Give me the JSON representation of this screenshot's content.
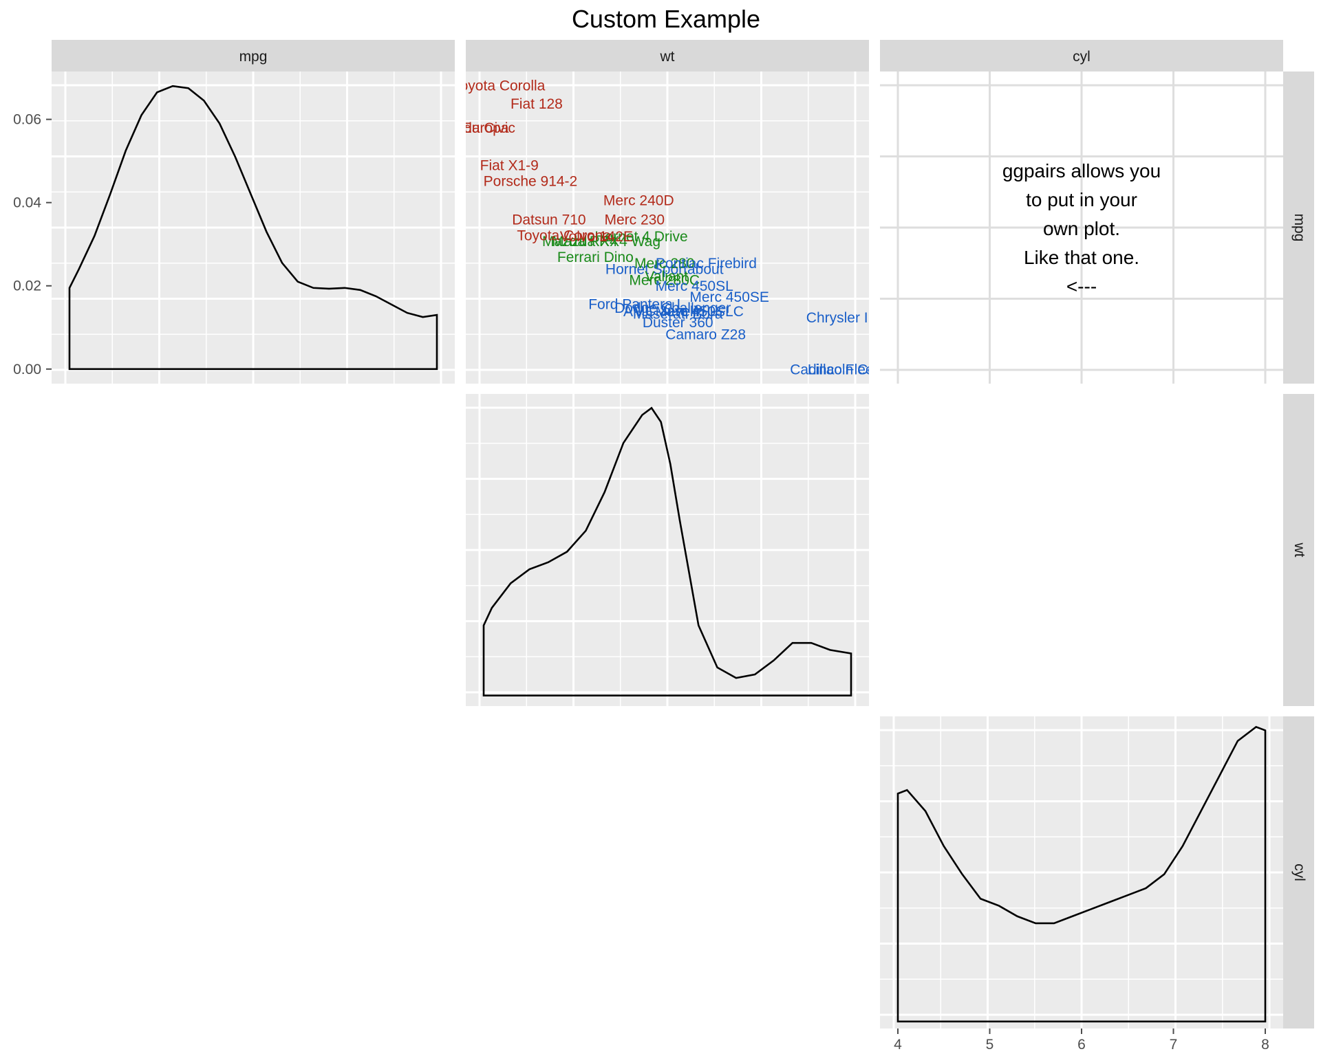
{
  "chart_data": {
    "type": "scatterplot-matrix",
    "title": "Custom Example",
    "variables": [
      "mpg",
      "wt",
      "cyl"
    ],
    "colors": {
      "panel_bg": "#ebebeb",
      "strip_bg": "#d9d9d9",
      "grid": "#ffffff",
      "cyl4": "#b22a1a",
      "cyl6": "#1a8a1a",
      "cyl8": "#1a5fc8"
    },
    "panels": {
      "mpg_density": {
        "type": "density",
        "variable": "mpg",
        "xlim": [
          10.4,
          33.9
        ],
        "ylim": [
          -0.0035,
          0.0715
        ],
        "y_ticks": [
          0.0,
          0.02,
          0.04,
          0.06
        ],
        "y_tick_labels": [
          "0.00",
          "0.02",
          "0.04",
          "0.06"
        ],
        "x": [
          10.4,
          11,
          12,
          13,
          14,
          15,
          16,
          17,
          18,
          19,
          20,
          21,
          22,
          23,
          24,
          25,
          26,
          27,
          28,
          29,
          30,
          31,
          32,
          33,
          33.9
        ],
        "y": [
          0.0195,
          0.024,
          0.032,
          0.042,
          0.0525,
          0.061,
          0.0665,
          0.068,
          0.0675,
          0.0645,
          0.059,
          0.051,
          0.042,
          0.033,
          0.0255,
          0.021,
          0.0195,
          0.0193,
          0.0195,
          0.019,
          0.0175,
          0.0155,
          0.0135,
          0.0125,
          0.013
        ]
      },
      "mpg_wt_labels": {
        "type": "text-scatter",
        "xlim": [
          1.513,
          5.424
        ],
        "ylim": [
          9.225,
          35.075
        ],
        "points": [
          {
            "name": "Mazda RX4",
            "wt": 2.62,
            "mpg": 21.0,
            "cyl": 6
          },
          {
            "name": "Mazda RX4 Wag",
            "wt": 2.875,
            "mpg": 21.0,
            "cyl": 6
          },
          {
            "name": "Datsun 710",
            "wt": 2.32,
            "mpg": 22.8,
            "cyl": 4
          },
          {
            "name": "Hornet 4 Drive",
            "wt": 3.215,
            "mpg": 21.4,
            "cyl": 6
          },
          {
            "name": "Hornet Sportabout",
            "wt": 3.44,
            "mpg": 18.7,
            "cyl": 8
          },
          {
            "name": "Valiant",
            "wt": 3.46,
            "mpg": 18.1,
            "cyl": 6
          },
          {
            "name": "Duster 360",
            "wt": 3.57,
            "mpg": 14.3,
            "cyl": 8
          },
          {
            "name": "Merc 240D",
            "wt": 3.19,
            "mpg": 24.4,
            "cyl": 4
          },
          {
            "name": "Merc 230",
            "wt": 3.15,
            "mpg": 22.8,
            "cyl": 4
          },
          {
            "name": "Merc 280",
            "wt": 3.44,
            "mpg": 19.2,
            "cyl": 6
          },
          {
            "name": "Merc 280C",
            "wt": 3.44,
            "mpg": 17.8,
            "cyl": 6
          },
          {
            "name": "Merc 450SE",
            "wt": 4.07,
            "mpg": 16.4,
            "cyl": 8
          },
          {
            "name": "Merc 450SL",
            "wt": 3.73,
            "mpg": 17.3,
            "cyl": 8
          },
          {
            "name": "Merc 450SLC",
            "wt": 3.78,
            "mpg": 15.2,
            "cyl": 8
          },
          {
            "name": "Cadillac Fleetwood",
            "wt": 5.25,
            "mpg": 10.4,
            "cyl": 8
          },
          {
            "name": "Lincoln Continental",
            "wt": 5.424,
            "mpg": 10.4,
            "cyl": 8
          },
          {
            "name": "Chrysler Imperial",
            "wt": 5.345,
            "mpg": 14.7,
            "cyl": 8
          },
          {
            "name": "Fiat 128",
            "wt": 2.2,
            "mpg": 32.4,
            "cyl": 4
          },
          {
            "name": "Honda Civic",
            "wt": 1.615,
            "mpg": 30.4,
            "cyl": 4
          },
          {
            "name": "Toyota Corolla",
            "wt": 1.835,
            "mpg": 33.9,
            "cyl": 4
          },
          {
            "name": "Toyota Corona",
            "wt": 2.465,
            "mpg": 21.5,
            "cyl": 4
          },
          {
            "name": "Dodge Challenger",
            "wt": 3.52,
            "mpg": 15.5,
            "cyl": 8
          },
          {
            "name": "AMC Javelin",
            "wt": 3.435,
            "mpg": 15.2,
            "cyl": 8
          },
          {
            "name": "Camaro Z28",
            "wt": 3.84,
            "mpg": 13.3,
            "cyl": 8
          },
          {
            "name": "Pontiac Firebird",
            "wt": 3.845,
            "mpg": 19.2,
            "cyl": 8
          },
          {
            "name": "Fiat X1-9",
            "wt": 1.935,
            "mpg": 27.3,
            "cyl": 4
          },
          {
            "name": "Porsche 914-2",
            "wt": 2.14,
            "mpg": 26.0,
            "cyl": 4
          },
          {
            "name": "Lotus Europa",
            "wt": 1.513,
            "mpg": 30.4,
            "cyl": 4
          },
          {
            "name": "Ford Pantera L",
            "wt": 3.17,
            "mpg": 15.8,
            "cyl": 8
          },
          {
            "name": "Ferrari Dino",
            "wt": 2.77,
            "mpg": 19.7,
            "cyl": 6
          },
          {
            "name": "Maserati Bora",
            "wt": 3.57,
            "mpg": 15.0,
            "cyl": 8
          },
          {
            "name": "Volvo 142E",
            "wt": 2.78,
            "mpg": 21.4,
            "cyl": 4
          }
        ]
      },
      "annotation": {
        "type": "text",
        "lines": [
          "ggpairs allows you",
          "to put in your",
          "own plot.",
          "Like that one.",
          "<---"
        ]
      },
      "wt_density": {
        "type": "density",
        "variable": "wt",
        "xlim": [
          1.513,
          5.424
        ],
        "ylim": [
          -0.03,
          0.86
        ],
        "x": [
          1.513,
          1.6,
          1.8,
          2.0,
          2.2,
          2.4,
          2.6,
          2.8,
          3.0,
          3.2,
          3.3,
          3.4,
          3.5,
          3.6,
          3.7,
          3.8,
          4.0,
          4.2,
          4.4,
          4.6,
          4.8,
          5.0,
          5.2,
          5.424
        ],
        "y": [
          0.2,
          0.25,
          0.32,
          0.36,
          0.38,
          0.41,
          0.47,
          0.58,
          0.72,
          0.8,
          0.82,
          0.78,
          0.66,
          0.5,
          0.35,
          0.2,
          0.08,
          0.05,
          0.06,
          0.1,
          0.15,
          0.15,
          0.13,
          0.12
        ]
      },
      "cyl_density": {
        "type": "density",
        "variable": "cyl",
        "xlim": [
          4,
          8
        ],
        "ylim": [
          -0.02,
          0.87
        ],
        "x_ticks": [
          4,
          5,
          6,
          7,
          8
        ],
        "x_tick_labels": [
          "4",
          "5",
          "6",
          "7",
          "8"
        ],
        "x": [
          4.0,
          4.1,
          4.3,
          4.5,
          4.7,
          4.9,
          5.1,
          5.3,
          5.5,
          5.7,
          5.9,
          6.1,
          6.3,
          6.5,
          6.7,
          6.9,
          7.1,
          7.3,
          7.5,
          7.7,
          7.9,
          8.0
        ],
        "y": [
          0.65,
          0.66,
          0.6,
          0.5,
          0.42,
          0.35,
          0.33,
          0.3,
          0.28,
          0.28,
          0.3,
          0.32,
          0.34,
          0.36,
          0.38,
          0.42,
          0.5,
          0.6,
          0.7,
          0.8,
          0.84,
          0.83
        ]
      }
    }
  }
}
